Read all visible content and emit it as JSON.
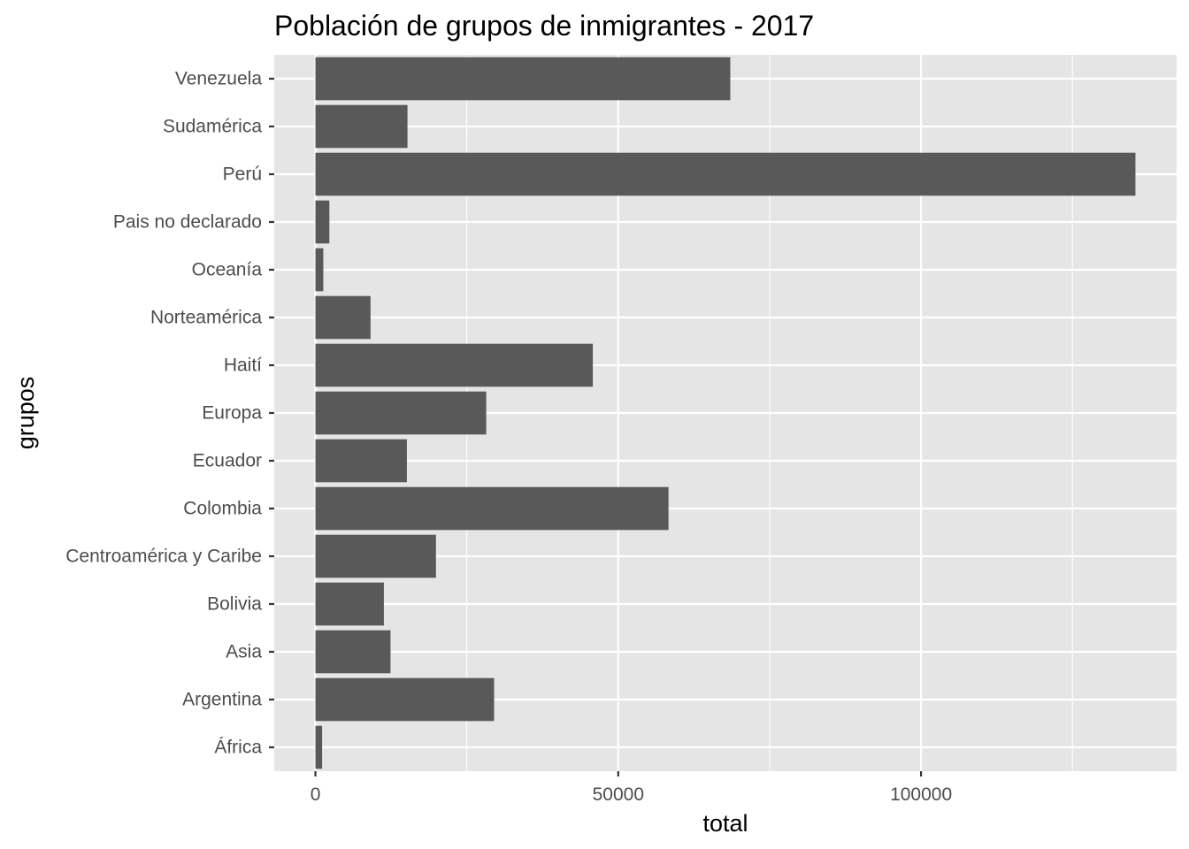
{
  "chart_data": {
    "type": "bar",
    "orientation": "horizontal",
    "title": "Población de grupos de inmigrantes - 2017",
    "xlabel": "total",
    "ylabel": "grupos",
    "categories": [
      "África",
      "Argentina",
      "Asia",
      "Bolivia",
      "Centroamérica y Caribe",
      "Colombia",
      "Ecuador",
      "Europa",
      "Haití",
      "Norteamérica",
      "Oceanía",
      "Pais no declarado",
      "Perú",
      "Sudamérica",
      "Venezuela"
    ],
    "values": [
      1100,
      29500,
      12400,
      11300,
      19900,
      58300,
      15100,
      28200,
      45800,
      9100,
      1300,
      2300,
      135400,
      15200,
      68500
    ],
    "xlim": [
      -6800,
      142200
    ],
    "xticks": [
      0,
      50000,
      100000
    ],
    "xtick_labels": [
      "0",
      "50000",
      "100000"
    ],
    "xminor": [
      25000,
      75000,
      125000
    ],
    "grid": true,
    "legend": "none",
    "colors": {
      "panel": "#e5e5e5",
      "grid": "#ffffff",
      "bar": "#595959",
      "tick": "#333333"
    }
  }
}
